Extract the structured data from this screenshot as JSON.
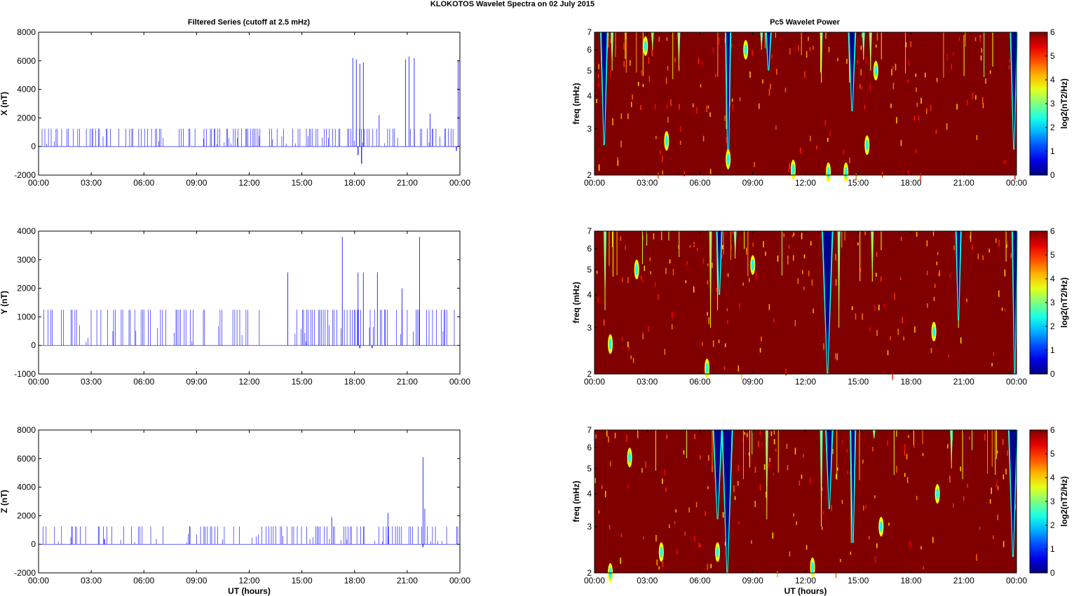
{
  "figure": {
    "suptitle": "KLOKOTOS Wavelet Spectra on 02 July      2015",
    "left_title": "Filtered Series (cutoff at 2.5 mHz)",
    "right_title": "Pc5 Wavelet Power",
    "colors": {
      "series": "#0000ff",
      "axis": "#000000",
      "heat_bg": "#800000",
      "heat_blue": "#00008f"
    }
  },
  "chart_data": [
    {
      "type": "line",
      "panel": "X",
      "ylabel": "X (nT)",
      "xlabel": "",
      "xticks": [
        "00:00",
        "03:00",
        "06:00",
        "09:00",
        "12:00",
        "15:00",
        "18:00",
        "21:00",
        "00:00"
      ],
      "xlim": [
        0,
        24
      ],
      "ylim": [
        -2000,
        8000
      ],
      "yticks": [
        -2000,
        0,
        2000,
        4000,
        6000,
        8000
      ],
      "series": [
        {
          "baseline": 0,
          "spike_level": 1250,
          "dense_ranges": [
            [
              0.2,
              7.2
            ],
            [
              8.0,
              15.5
            ],
            [
              15.5,
              17.0
            ],
            [
              17.0,
              23.8
            ]
          ],
          "tall_spikes": [
            [
              17.9,
              6200
            ],
            [
              18.1,
              6100
            ],
            [
              18.3,
              5800
            ],
            [
              18.5,
              5900
            ],
            [
              19.4,
              2200
            ],
            [
              20.9,
              6100
            ],
            [
              21.1,
              6300
            ],
            [
              21.4,
              6200
            ],
            [
              22.3,
              2300
            ],
            [
              23.9,
              6000
            ]
          ],
          "min_dips": [
            [
              18.4,
              -1200
            ],
            [
              18.2,
              -600
            ],
            [
              23.8,
              -300
            ]
          ]
        }
      ]
    },
    {
      "type": "line",
      "panel": "Y",
      "ylabel": "Y (nT)",
      "xlabel": "",
      "xticks": [
        "00:00",
        "03:00",
        "06:00",
        "09:00",
        "12:00",
        "15:00",
        "18:00",
        "21:00",
        "00:00"
      ],
      "xlim": [
        0,
        24
      ],
      "ylim": [
        -1000,
        4000
      ],
      "yticks": [
        -1000,
        0,
        1000,
        2000,
        3000,
        4000
      ],
      "series": [
        {
          "baseline": 0,
          "spike_level": 1250,
          "dense_ranges": [
            [
              0.3,
              12.9
            ],
            [
              14.5,
              23.9
            ]
          ],
          "tall_spikes": [
            [
              14.2,
              2550
            ],
            [
              17.3,
              3800
            ],
            [
              18.2,
              2550
            ],
            [
              18.5,
              2550
            ],
            [
              19.3,
              2550
            ],
            [
              21.7,
              3800
            ],
            [
              20.7,
              2000
            ]
          ],
          "min_dips": [
            [
              18.3,
              -100
            ],
            [
              19.0,
              -100
            ]
          ]
        }
      ]
    },
    {
      "type": "line",
      "panel": "Z",
      "ylabel": "Z (nT)",
      "xlabel": "UT (hours)",
      "xticks": [
        "00:00",
        "03:00",
        "06:00",
        "09:00",
        "12:00",
        "15:00",
        "18:00",
        "21:00",
        "00:00"
      ],
      "xlim": [
        0,
        24
      ],
      "ylim": [
        -2000,
        8000
      ],
      "yticks": [
        -2000,
        0,
        2000,
        4000,
        6000,
        8000
      ],
      "series": [
        {
          "baseline": 0,
          "spike_level": 1250,
          "dense_ranges": [
            [
              0.1,
              7.2
            ],
            [
              8.1,
              23.9
            ]
          ],
          "tall_spikes": [
            [
              21.9,
              6100
            ],
            [
              16.7,
              1900
            ],
            [
              19.9,
              2200
            ],
            [
              22.0,
              2500
            ]
          ],
          "min_dips": [
            [
              21.9,
              -200
            ]
          ]
        }
      ]
    },
    {
      "type": "heatmap",
      "panel": "X power",
      "ylabel": "freq (mHz)",
      "xlabel": "",
      "xticks": [
        "00:00",
        "03:00",
        "06:00",
        "09:00",
        "12:00",
        "15:00",
        "18:00",
        "21:00",
        "00:00"
      ],
      "xlim": [
        0,
        24
      ],
      "ylim": [
        2,
        7
      ],
      "yscale": "log",
      "yticks": [
        2,
        3,
        4,
        5,
        6,
        7
      ],
      "colorbar": {
        "label": "log2(nT2/Hz)",
        "ticks": [
          0,
          1,
          2,
          3,
          4,
          5,
          6
        ],
        "range": [
          0,
          6
        ]
      },
      "low_power_columns": [
        [
          0.4,
          0.7,
          2.6
        ],
        [
          7.5,
          7.7,
          2.1
        ],
        [
          9.8,
          10.0,
          5.0
        ],
        [
          14.5,
          14.8,
          3.5
        ],
        [
          23.7,
          24.0,
          2.5
        ]
      ],
      "streaks": [
        [
          1.0,
          5.0
        ],
        [
          3.3,
          6.0
        ],
        [
          4.8,
          5.0
        ],
        [
          7.5,
          3.0
        ],
        [
          9.5,
          6.0
        ],
        [
          12.9,
          4.5
        ],
        [
          14.5,
          4.5
        ],
        [
          15.3,
          5.5
        ],
        [
          15.7,
          5.0
        ]
      ],
      "spots": [
        [
          4.1,
          2.7
        ],
        [
          7.6,
          2.3
        ],
        [
          15.5,
          2.6
        ],
        [
          11.3,
          2.1
        ],
        [
          13.3,
          2.05
        ],
        [
          14.3,
          2.05
        ],
        [
          16.0,
          5.0
        ],
        [
          2.9,
          6.2
        ],
        [
          8.6,
          6.0
        ]
      ]
    },
    {
      "type": "heatmap",
      "panel": "Y power",
      "ylabel": "freq (mHz)",
      "xlabel": "",
      "xticks": [
        "00:00",
        "03:00",
        "06:00",
        "09:00",
        "12:00",
        "15:00",
        "18:00",
        "21:00",
        "00:00"
      ],
      "xlim": [
        0,
        24
      ],
      "ylim": [
        2,
        7
      ],
      "yscale": "log",
      "yticks": [
        2,
        3,
        4,
        5,
        6,
        7
      ],
      "colorbar": {
        "label": "log2(nT2/Hz)",
        "ticks": [
          0,
          1,
          2,
          3,
          4,
          5,
          6
        ],
        "range": [
          0,
          6
        ]
      },
      "low_power_columns": [
        [
          13.0,
          13.5,
          2.0
        ],
        [
          20.6,
          20.8,
          3.2
        ],
        [
          23.8,
          24.0,
          2.0
        ],
        [
          7.0,
          7.2,
          4.0
        ]
      ],
      "streaks": [
        [
          6.6,
          3.0
        ],
        [
          7.0,
          3.5
        ],
        [
          13.9,
          3.0
        ],
        [
          15.8,
          4.5
        ],
        [
          20.7,
          3.0
        ],
        [
          0.6,
          3.5
        ],
        [
          8.0,
          5.5
        ]
      ],
      "spots": [
        [
          0.9,
          2.6
        ],
        [
          6.4,
          2.1
        ],
        [
          19.3,
          2.9
        ],
        [
          2.4,
          5.0
        ],
        [
          9.0,
          5.2
        ]
      ]
    },
    {
      "type": "heatmap",
      "panel": "Z power",
      "ylabel": "freq (mHz)",
      "xlabel": "UT (hours)",
      "xticks": [
        "00:00",
        "03:00",
        "06:00",
        "09:00",
        "12:00",
        "15:00",
        "18:00",
        "21:00",
        "00:00"
      ],
      "xlim": [
        0,
        24
      ],
      "ylim": [
        2,
        7
      ],
      "yscale": "log",
      "yticks": [
        2,
        3,
        4,
        5,
        6,
        7
      ],
      "colorbar": {
        "label": "log2(nT2/Hz)",
        "ticks": [
          0,
          1,
          2,
          3,
          4,
          5,
          6
        ],
        "range": [
          0,
          6
        ]
      },
      "low_power_columns": [
        [
          6.8,
          7.2,
          3.2
        ],
        [
          7.3,
          7.8,
          2.0
        ],
        [
          13.2,
          13.5,
          3.5
        ],
        [
          14.6,
          14.8,
          2.6
        ],
        [
          23.6,
          24.0,
          2.3
        ]
      ],
      "streaks": [
        [
          9.8,
          3.2
        ],
        [
          12.9,
          3.0
        ],
        [
          14.6,
          2.6
        ],
        [
          20.3,
          5.0
        ],
        [
          15.9,
          6.5
        ]
      ],
      "spots": [
        [
          3.8,
          2.4
        ],
        [
          7.0,
          2.4
        ],
        [
          0.9,
          2.0
        ],
        [
          12.4,
          2.1
        ],
        [
          16.3,
          3.0
        ],
        [
          19.5,
          4.0
        ],
        [
          2.0,
          5.5
        ]
      ]
    }
  ]
}
